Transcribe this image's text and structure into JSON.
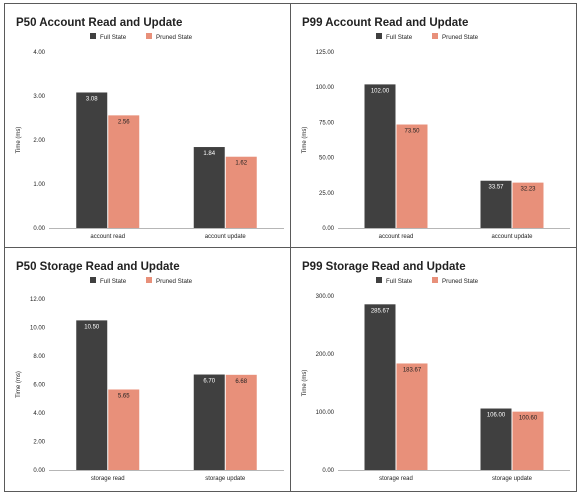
{
  "colors": {
    "full": "#404040",
    "pruned": "#E8907A",
    "border": "#5a5a5a",
    "axis": "#9e9e9e",
    "text": "#222222"
  },
  "chart_data": [
    {
      "type": "bar",
      "title": "P50 Account Read and Update",
      "ylabel": "Time (ms)",
      "xlabel": "",
      "categories": [
        "account read",
        "account update"
      ],
      "series": [
        {
          "name": "Full State",
          "values": [
            3.08,
            1.84
          ]
        },
        {
          "name": "Pruned State",
          "values": [
            2.56,
            1.62
          ]
        }
      ],
      "value_labels": [
        [
          "3.08",
          "1.84"
        ],
        [
          "2.56",
          "1.62"
        ]
      ],
      "ylim": [
        0,
        4
      ],
      "yticks": [
        "0.00",
        "1.00",
        "2.00",
        "3.00",
        "4.00"
      ],
      "legend": "top",
      "grid": false
    },
    {
      "type": "bar",
      "title": "P99 Account Read and Update",
      "ylabel": "Time (ms)",
      "xlabel": "",
      "categories": [
        "account read",
        "account update"
      ],
      "series": [
        {
          "name": "Full State",
          "values": [
            102.0,
            33.57
          ]
        },
        {
          "name": "Pruned State",
          "values": [
            73.5,
            32.23
          ]
        }
      ],
      "value_labels": [
        [
          "102.00",
          "33.57"
        ],
        [
          "73.50",
          "32.23"
        ]
      ],
      "ylim": [
        0,
        125
      ],
      "yticks": [
        "0.00",
        "25.00",
        "50.00",
        "75.00",
        "100.00",
        "125.00"
      ],
      "legend": "top",
      "grid": false
    },
    {
      "type": "bar",
      "title": "P50 Storage Read and Update",
      "ylabel": "Time (ms)",
      "xlabel": "",
      "categories": [
        "storage read",
        "storage update"
      ],
      "series": [
        {
          "name": "Full State",
          "values": [
            10.5,
            6.7
          ]
        },
        {
          "name": "Pruned State",
          "values": [
            5.65,
            6.68
          ]
        }
      ],
      "value_labels": [
        [
          "10.50",
          "6.70"
        ],
        [
          "5.65",
          "6.68"
        ]
      ],
      "ylim": [
        0,
        12
      ],
      "yticks": [
        "0.00",
        "2.00",
        "4.00",
        "6.00",
        "8.00",
        "10.00",
        "12.00"
      ],
      "legend": "top",
      "grid": false
    },
    {
      "type": "bar",
      "title": "P99 Storage Read and Update",
      "ylabel": "Time (ms)",
      "xlabel": "",
      "categories": [
        "storage read",
        "storage update"
      ],
      "series": [
        {
          "name": "Full State",
          "values": [
            285.67,
            106.0
          ]
        },
        {
          "name": "Pruned State",
          "values": [
            183.67,
            100.6
          ]
        }
      ],
      "value_labels": [
        [
          "285.67",
          "106.00"
        ],
        [
          "183.67",
          "100.60"
        ]
      ],
      "ylim": [
        0,
        300
      ],
      "yticks": [
        "0.00",
        "100.00",
        "200.00",
        "300.00"
      ],
      "legend": "top",
      "grid": false
    }
  ]
}
